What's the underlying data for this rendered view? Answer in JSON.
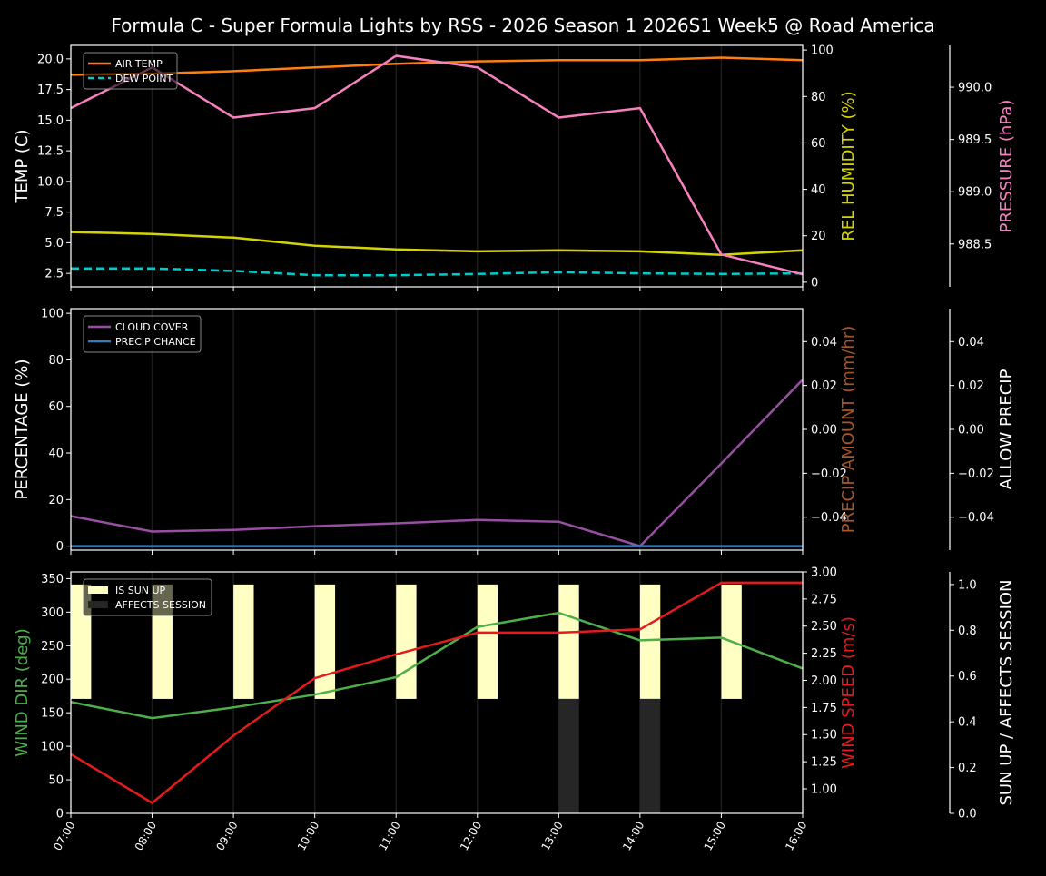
{
  "chart_data": {
    "title": "Formula C - Super Formula Lights by RSS - 2026 Season 1 2026S1 Week5 @ Road America",
    "x": [
      "07:00",
      "08:00",
      "09:00",
      "10:00",
      "11:00",
      "12:00",
      "13:00",
      "14:00",
      "15:00",
      "16:00"
    ],
    "grid": "vertical",
    "panels": [
      {
        "type": "line",
        "legend_placement": "top-left",
        "left_axis": {
          "label": "TEMP (C)",
          "color": "#ffffff",
          "ylim": [
            1.4,
            21.1
          ],
          "ticks": [
            2.5,
            5.0,
            7.5,
            10.0,
            12.5,
            15.0,
            17.5,
            20.0
          ],
          "tick_labels": [
            "2.5",
            "5.0",
            "7.5",
            "10.0",
            "12.5",
            "15.0",
            "17.5",
            "20.0"
          ]
        },
        "right_axis": {
          "label": "REL HUMIDITY (%)",
          "color": "#d4d400",
          "ylim": [
            -2,
            102
          ],
          "ticks": [
            0,
            20,
            40,
            60,
            80,
            100
          ],
          "tick_labels": [
            "0",
            "20",
            "40",
            "60",
            "80",
            "100"
          ]
        },
        "right_axis2": {
          "label": "PRESSURE (hPa)",
          "color": "#f781bf",
          "ylim": [
            988.09,
            990.4
          ],
          "ticks": [
            988.5,
            989.0,
            989.5,
            990.0
          ],
          "tick_labels": [
            "988.5",
            "989.0",
            "989.5",
            "990.0"
          ]
        },
        "series": [
          {
            "name": "AIR TEMP",
            "axis": "left",
            "color": "#ff7f0e",
            "dash": false,
            "legend": true,
            "values": [
              18.7,
              18.8,
              19.0,
              19.3,
              19.6,
              19.8,
              19.9,
              19.9,
              20.1,
              19.9
            ]
          },
          {
            "name": "DEW POINT",
            "axis": "left",
            "color": "#00cccc",
            "dash": true,
            "legend": true,
            "values": [
              2.9,
              2.9,
              2.7,
              2.35,
              2.35,
              2.45,
              2.6,
              2.5,
              2.45,
              2.5
            ]
          },
          {
            "axis": "right",
            "color": "#d4d400",
            "dash": false,
            "legend": false,
            "values": [
              21.6,
              20.8,
              19.2,
              15.7,
              14.1,
              13.3,
              13.7,
              13.3,
              11.8,
              13.7
            ]
          },
          {
            "axis": "right2",
            "color": "#f781bf",
            "dash": false,
            "legend": false,
            "values": [
              989.8,
              990.19,
              989.71,
              989.8,
              990.3,
              990.19,
              989.71,
              989.8,
              988.4,
              988.21
            ]
          }
        ]
      },
      {
        "type": "line",
        "legend_placement": "top-left",
        "left_axis": {
          "label": "PERCENTAGE (%)",
          "color": "#ffffff",
          "ylim": [
            -1.7,
            102
          ],
          "ticks": [
            0,
            20,
            40,
            60,
            80,
            100
          ],
          "tick_labels": [
            "0",
            "20",
            "40",
            "60",
            "80",
            "100"
          ]
        },
        "right_axis": {
          "label": "PRECIP AMOUNT (mm/hr)",
          "color": "#a65628",
          "ylim": [
            -0.055,
            0.055
          ],
          "ticks": [
            -0.04,
            -0.02,
            0.0,
            0.02,
            0.04
          ],
          "tick_labels": [
            "−0.04",
            "−0.02",
            "0.00",
            "0.02",
            "0.04"
          ]
        },
        "right_axis2": {
          "label": "ALLOW PRECIP",
          "color": "#ffffff",
          "ylim": [
            -0.055,
            0.055
          ],
          "ticks": [
            -0.04,
            -0.02,
            0.0,
            0.02,
            0.04
          ],
          "tick_labels": [
            "−0.04",
            "−0.02",
            "0.00",
            "0.02",
            "0.04"
          ]
        },
        "series": [
          {
            "name": "CLOUD COVER",
            "axis": "left",
            "color": "#984ea3",
            "dash": false,
            "legend": true,
            "values": [
              12.9,
              6.3,
              7.0,
              8.6,
              9.8,
              11.3,
              10.5,
              0.0,
              35.5,
              71.5
            ]
          },
          {
            "name": "PRECIP CHANCE",
            "axis": "left",
            "color": "#377eb8",
            "dash": false,
            "legend": true,
            "values": [
              0,
              0,
              0,
              0,
              0,
              0,
              0,
              0,
              0,
              0
            ]
          }
        ]
      },
      {
        "type": "line+bar",
        "legend_placement": "top-left",
        "left_axis": {
          "label": "WIND DIR (deg)",
          "color": "#4daf4a",
          "ylim": [
            0,
            360
          ],
          "ticks": [
            0,
            50,
            100,
            150,
            200,
            250,
            300,
            350
          ],
          "tick_labels": [
            "0",
            "50",
            "100",
            "150",
            "200",
            "250",
            "300",
            "350"
          ]
        },
        "right_axis": {
          "label": "WIND SPEED (m/s)",
          "color": "#e41a1c",
          "ylim": [
            0.774,
            3.0
          ],
          "ticks": [
            1.0,
            1.25,
            1.5,
            1.75,
            2.0,
            2.25,
            2.5,
            2.75,
            3.0
          ],
          "tick_labels": [
            "1.00",
            "1.25",
            "1.50",
            "1.75",
            "2.00",
            "2.25",
            "2.50",
            "2.75",
            "3.00"
          ]
        },
        "right_axis2": {
          "label": "SUN UP / AFFECTS SESSION",
          "color": "#ffffff",
          "ylim": [
            0,
            1.055
          ],
          "ticks": [
            0.0,
            0.2,
            0.4,
            0.6,
            0.8,
            1.0
          ],
          "tick_labels": [
            "0.0",
            "0.2",
            "0.4",
            "0.6",
            "0.8",
            "1.0"
          ]
        },
        "bars": [
          {
            "name": "IS SUN UP",
            "color": "#ffffc4",
            "range": [
              0.5,
              1.0
            ],
            "values": [
              1,
              1,
              1,
              1,
              1,
              1,
              1,
              1,
              1,
              0
            ]
          },
          {
            "name": "AFFECTS SESSION",
            "color": "#262626",
            "range": [
              0.0,
              0.5
            ],
            "values": [
              0,
              0,
              0,
              0,
              0,
              0,
              1,
              1,
              0,
              0
            ]
          }
        ],
        "series": [
          {
            "axis": "left",
            "color": "#4daf4a",
            "dash": false,
            "legend": false,
            "values": [
              166,
              142,
              158,
              177,
              203,
              278,
              299,
              258,
              262,
              216
            ]
          },
          {
            "axis": "right",
            "color": "#e41a1c",
            "dash": false,
            "legend": false,
            "values": [
              1.32,
              0.87,
              1.49,
              2.02,
              2.24,
              2.44,
              2.44,
              2.47,
              2.9,
              2.9
            ]
          }
        ]
      }
    ]
  }
}
